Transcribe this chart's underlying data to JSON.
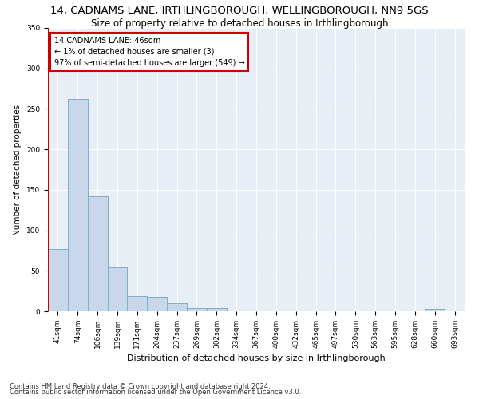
{
  "title": "14, CADNAMS LANE, IRTHLINGBOROUGH, WELLINGBOROUGH, NN9 5GS",
  "subtitle": "Size of property relative to detached houses in Irthlingborough",
  "xlabel": "Distribution of detached houses by size in Irthlingborough",
  "ylabel": "Number of detached properties",
  "categories": [
    "41sqm",
    "74sqm",
    "106sqm",
    "139sqm",
    "171sqm",
    "204sqm",
    "237sqm",
    "269sqm",
    "302sqm",
    "334sqm",
    "367sqm",
    "400sqm",
    "432sqm",
    "465sqm",
    "497sqm",
    "530sqm",
    "563sqm",
    "595sqm",
    "628sqm",
    "660sqm",
    "693sqm"
  ],
  "values": [
    77,
    262,
    142,
    54,
    19,
    18,
    10,
    4,
    4,
    0,
    0,
    0,
    0,
    0,
    0,
    0,
    0,
    0,
    0,
    3,
    0
  ],
  "bar_color": "#c8d8ea",
  "bar_edge_color": "#7aaac8",
  "highlight_edge_color": "#cc0000",
  "background_color": "#ffffff",
  "plot_bg_color": "#e8eef5",
  "grid_color": "#ffffff",
  "annotation_text": "14 CADNAMS LANE: 46sqm\n← 1% of detached houses are smaller (3)\n97% of semi-detached houses are larger (549) →",
  "annotation_box_edge_color": "#cc0000",
  "ylim": [
    0,
    350
  ],
  "yticks": [
    0,
    50,
    100,
    150,
    200,
    250,
    300,
    350
  ],
  "footnote1": "Contains HM Land Registry data © Crown copyright and database right 2024.",
  "footnote2": "Contains public sector information licensed under the Open Government Licence v3.0.",
  "title_fontsize": 9.5,
  "subtitle_fontsize": 8.5,
  "xlabel_fontsize": 8,
  "ylabel_fontsize": 7.5,
  "tick_fontsize": 6.5,
  "annotation_fontsize": 7,
  "footnote_fontsize": 6
}
